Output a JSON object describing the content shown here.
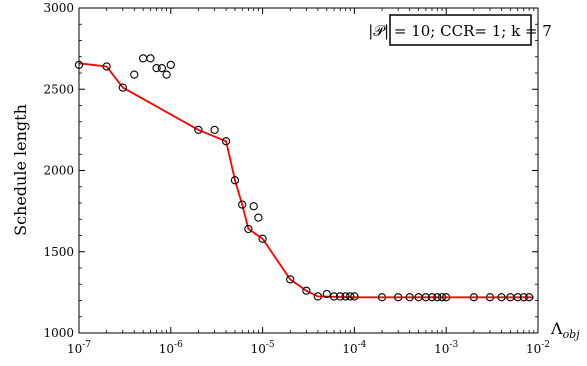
{
  "chart_data": {
    "type": "scatter",
    "title": "",
    "xlabel": "Λobj",
    "ylabel": "Schedule length",
    "xscale": "log",
    "xlim": [
      1e-07,
      0.01
    ],
    "ylim": [
      1000,
      3000
    ],
    "grid": false,
    "legend_text": "|𝒫| = 10; CCR= 1; k = 7",
    "legend_placement": "top-right",
    "x_ticks": [
      {
        "value": 1e-07,
        "label": "10^-7"
      },
      {
        "value": 1e-06,
        "label": "10^-6"
      },
      {
        "value": 1e-05,
        "label": "10^-5"
      },
      {
        "value": 0.0001,
        "label": "10^-4"
      },
      {
        "value": 0.001,
        "label": "10^-3"
      },
      {
        "value": 0.01,
        "label": "10^-2"
      }
    ],
    "y_ticks": [
      1000,
      1500,
      2000,
      2500,
      3000
    ],
    "colors": {
      "line": "#ff0000",
      "points": "#000000"
    },
    "series": [
      {
        "kind": "scatter",
        "points": [
          [
            1e-07,
            2650
          ],
          [
            2e-07,
            2640
          ],
          [
            3e-07,
            2510
          ],
          [
            4e-07,
            2590
          ],
          [
            5e-07,
            2690
          ],
          [
            6e-07,
            2690
          ],
          [
            7e-07,
            2630
          ],
          [
            8e-07,
            2630
          ],
          [
            9e-07,
            2590
          ],
          [
            1e-06,
            2650
          ],
          [
            2e-06,
            2250
          ],
          [
            3e-06,
            2250
          ],
          [
            4e-06,
            2180
          ],
          [
            5e-06,
            1940
          ],
          [
            6e-06,
            1790
          ],
          [
            7e-06,
            1640
          ],
          [
            8e-06,
            1780
          ],
          [
            9e-06,
            1710
          ],
          [
            1e-05,
            1580
          ],
          [
            2e-05,
            1330
          ],
          [
            3e-05,
            1260
          ],
          [
            4e-05,
            1225
          ],
          [
            5e-05,
            1240
          ],
          [
            6e-05,
            1225
          ],
          [
            7e-05,
            1225
          ],
          [
            8e-05,
            1225
          ],
          [
            9e-05,
            1225
          ],
          [
            0.0001,
            1225
          ],
          [
            0.0002,
            1220
          ],
          [
            0.0003,
            1220
          ],
          [
            0.0004,
            1220
          ],
          [
            0.0005,
            1220
          ],
          [
            0.0006,
            1220
          ],
          [
            0.0007,
            1220
          ],
          [
            0.0008,
            1220
          ],
          [
            0.0009,
            1220
          ],
          [
            0.001,
            1220
          ],
          [
            0.002,
            1220
          ],
          [
            0.003,
            1220
          ],
          [
            0.004,
            1220
          ],
          [
            0.005,
            1220
          ],
          [
            0.006,
            1220
          ],
          [
            0.007,
            1220
          ],
          [
            0.008,
            1220
          ]
        ]
      },
      {
        "kind": "line",
        "points": [
          [
            1e-07,
            2660
          ],
          [
            2e-07,
            2640
          ],
          [
            3e-07,
            2510
          ],
          [
            2e-06,
            2250
          ],
          [
            4e-06,
            2180
          ],
          [
            5e-06,
            1940
          ],
          [
            6e-06,
            1790
          ],
          [
            7e-06,
            1640
          ],
          [
            1e-05,
            1580
          ],
          [
            2e-05,
            1330
          ],
          [
            3e-05,
            1260
          ],
          [
            4e-05,
            1225
          ],
          [
            0.0001,
            1220
          ],
          [
            0.009,
            1220
          ]
        ]
      }
    ]
  }
}
